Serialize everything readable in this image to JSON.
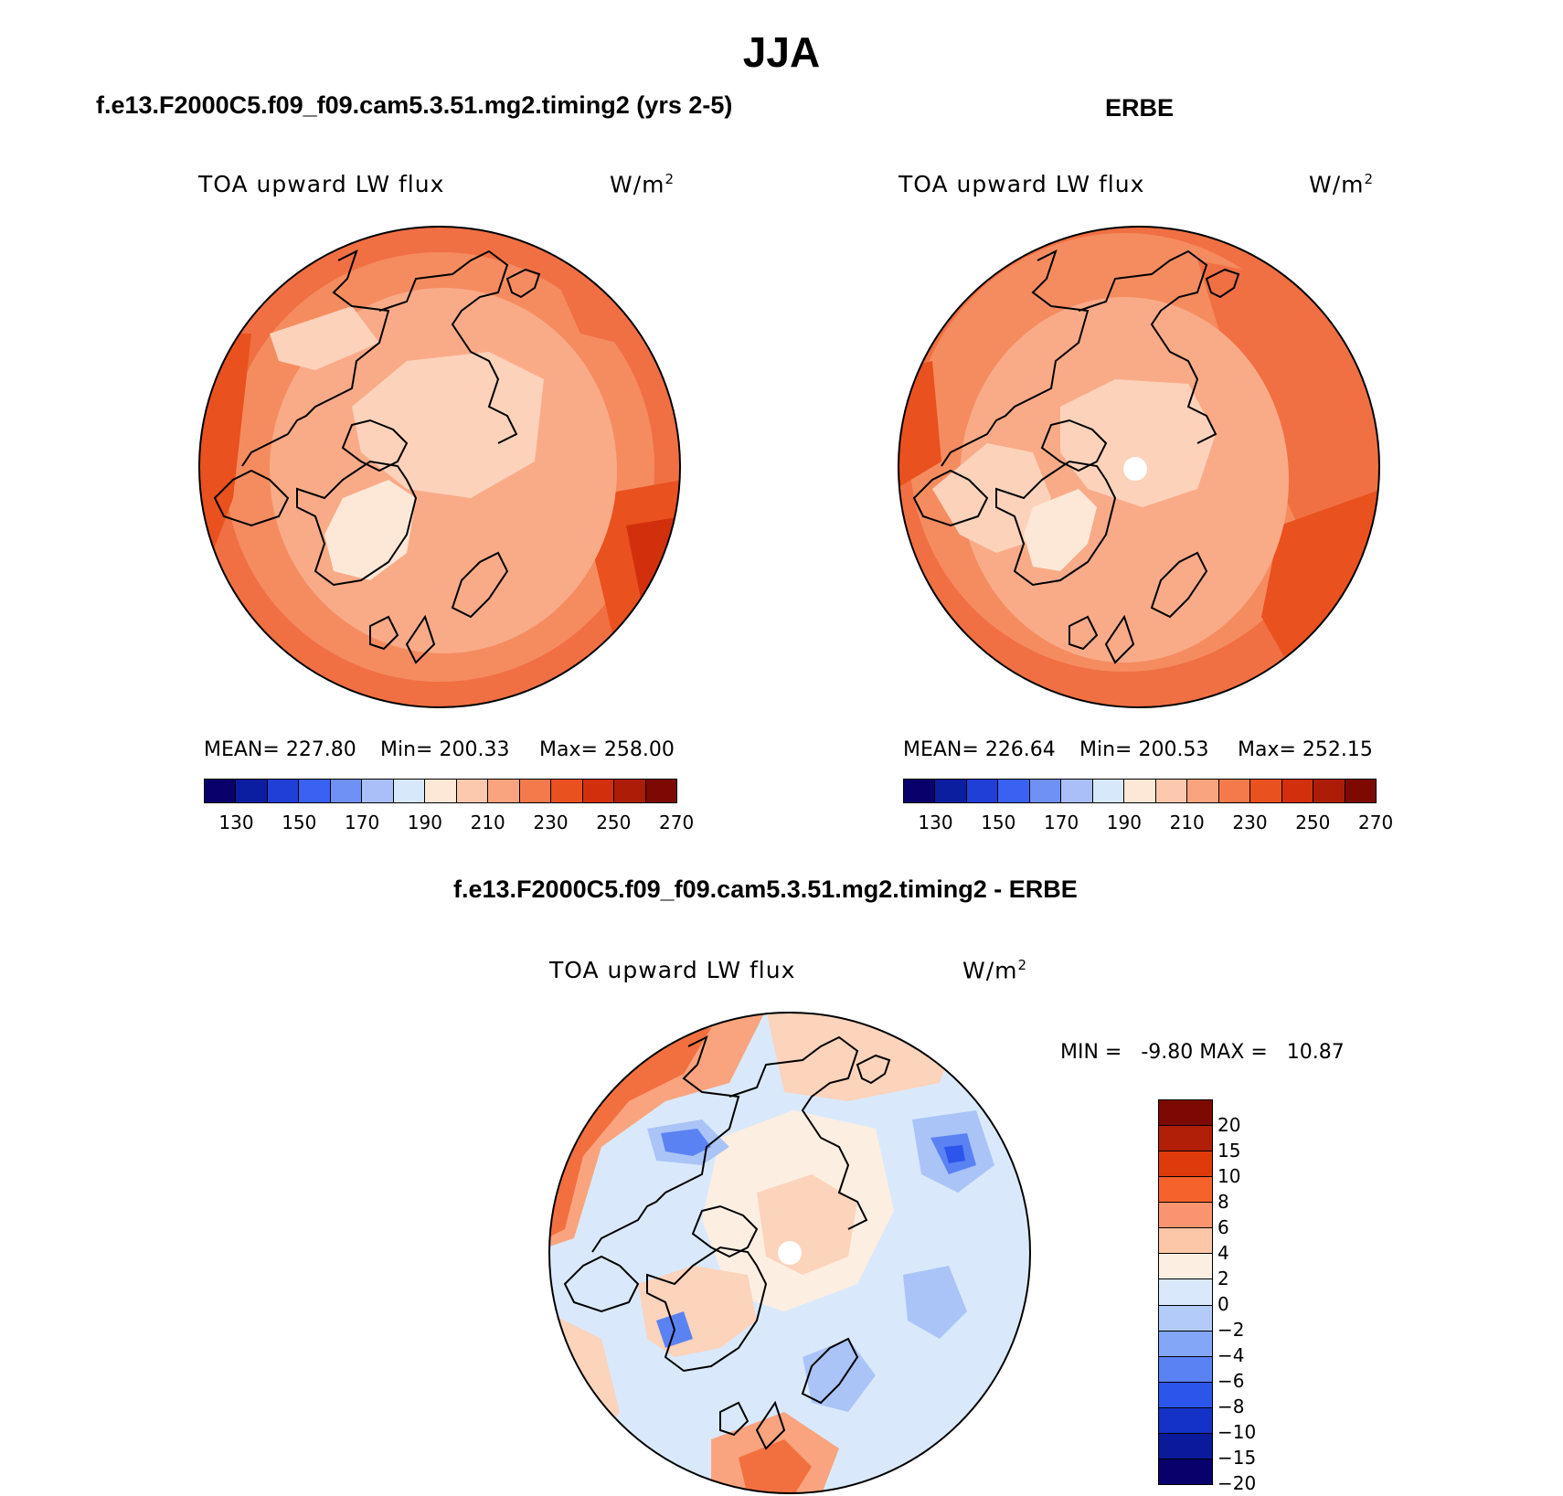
{
  "title": "JJA",
  "panels": {
    "model": {
      "header": "f.e13.F2000C5.f09_f09.cam5.3.51.mg2.timing2 (yrs 2-5)",
      "variable": "TOA upward LW flux",
      "units": "W/m",
      "units_sup": "2",
      "mean": "MEAN= 227.80",
      "min": "Min= 200.33",
      "max": "Max= 258.00"
    },
    "obs": {
      "header": "ERBE",
      "variable": "TOA upward LW flux",
      "units": "W/m",
      "units_sup": "2",
      "mean": "MEAN= 226.64",
      "min": "Min= 200.53",
      "max": "Max= 252.15"
    },
    "diff": {
      "header": "f.e13.F2000C5.f09_f09.cam5.3.51.mg2.timing2 - ERBE",
      "variable": "TOA upward LW flux",
      "units": "W/m",
      "units_sup": "2",
      "minmax": "MIN =   -9.80 MAX =   10.87"
    }
  },
  "colorbar_abs": {
    "colors": [
      "#08006b",
      "#0c1ea0",
      "#1f3fd6",
      "#3a62f2",
      "#6f90f4",
      "#aabff8",
      "#d8e8fb",
      "#fde8d7",
      "#fcc9ae",
      "#f9a47e",
      "#f47a4c",
      "#e9511f",
      "#d2300d",
      "#ad1c07",
      "#7d0a02"
    ],
    "ticks": [
      "130",
      "150",
      "170",
      "190",
      "210",
      "230",
      "250",
      "270"
    ]
  },
  "colorbar_diff": {
    "colors": [
      "#7d0a02",
      "#b21f08",
      "#df3a0c",
      "#f5622b",
      "#fa9470",
      "#fcc6a8",
      "#fdeee2",
      "#d9e9fb",
      "#b3cbf8",
      "#84a6f6",
      "#5a82f3",
      "#2c55eb",
      "#1432c8",
      "#0b1a9b",
      "#08006b"
    ],
    "ticks": [
      "20",
      "15",
      "10",
      "8",
      "6",
      "4",
      "2",
      "0",
      "−2",
      "−4",
      "−6",
      "−8",
      "−10",
      "−15",
      "−20"
    ]
  },
  "map_colors": {
    "c200": "#fde8d7",
    "c210": "#fcd2bb",
    "c220": "#f9ab88",
    "c230": "#f58c60",
    "c240": "#f07043",
    "c250": "#e9511f",
    "c255": "#d2300d",
    "d_pos_big": "#f2703f",
    "d_pos_med": "#f9a47e",
    "d_pos_small": "#fcd3bb",
    "d_zero": "#fdeee2",
    "d_neg_small": "#d9e9fb",
    "d_neg_med": "#aac4f7",
    "d_neg_big": "#5a82f3",
    "d_neg_max": "#2c55eb"
  }
}
